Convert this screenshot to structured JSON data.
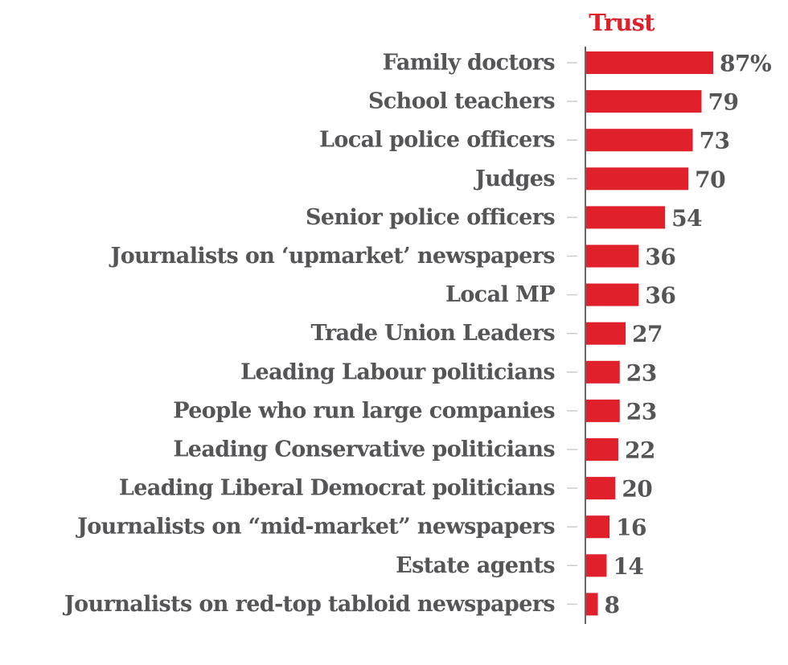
{
  "chart_data": {
    "type": "bar",
    "orientation": "horizontal",
    "title": "Trust",
    "categories": [
      "Family doctors",
      "School teachers",
      "Local police officers",
      "Judges",
      "Senior police officers",
      "Journalists on ‘upmarket’ newspapers",
      "Local MP",
      "Trade Union Leaders",
      "Leading Labour politicians",
      "People who run large companies",
      "Leading Conservative politicians",
      "Leading Liberal Democrat politicians",
      "Journalists on “mid-market” newspapers",
      "Estate agents",
      "Journalists on red-top tabloid newspapers"
    ],
    "values": [
      87,
      79,
      73,
      70,
      54,
      36,
      36,
      27,
      23,
      23,
      22,
      20,
      16,
      14,
      8
    ],
    "value_labels": [
      "87%",
      "79",
      "73",
      "70",
      "54",
      "36",
      "36",
      "27",
      "23",
      "23",
      "22",
      "20",
      "16",
      "14",
      "8"
    ],
    "xlim": [
      0,
      87
    ],
    "grid": false,
    "legend": "none",
    "colors": {
      "bar": "#e0202a",
      "title": "#e0202a",
      "text": "#555558",
      "axis": "#333333",
      "tick": "#cccccc"
    }
  }
}
